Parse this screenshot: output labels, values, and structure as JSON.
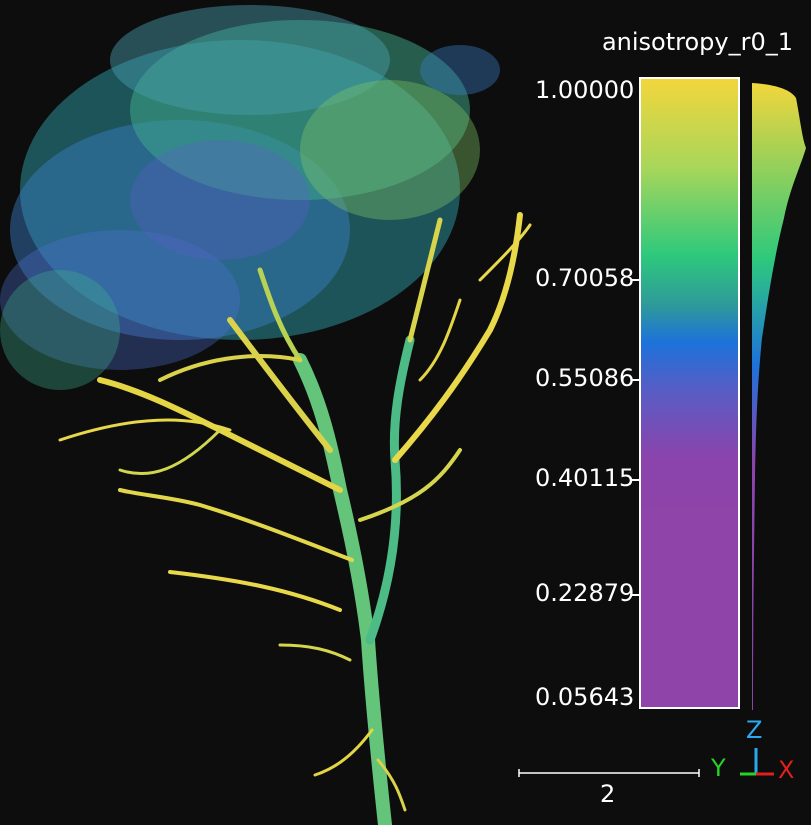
{
  "scalar_field": "anisotropy_r0_1",
  "colorbar": {
    "ticks": [
      {
        "label": "1.00000",
        "value": 1.0
      },
      {
        "label": "0.70058",
        "value": 0.70058
      },
      {
        "label": "0.55086",
        "value": 0.55086
      },
      {
        "label": "0.40115",
        "value": 0.40115
      },
      {
        "label": "0.22879",
        "value": 0.22879
      },
      {
        "label": "0.05643",
        "value": 0.05643
      }
    ],
    "min": 0.05643,
    "max": 1.0
  },
  "scale_bar": {
    "label": "2"
  },
  "axes": {
    "z": "Z",
    "y": "Y",
    "x": "X",
    "z_color": "#2aa9f0",
    "y_color": "#26d326",
    "x_color": "#e0201c"
  },
  "colors": {
    "background": "#0d0d0d",
    "high": "#f2d63c",
    "mid": "#1d72da",
    "low": "#8e44a8"
  }
}
